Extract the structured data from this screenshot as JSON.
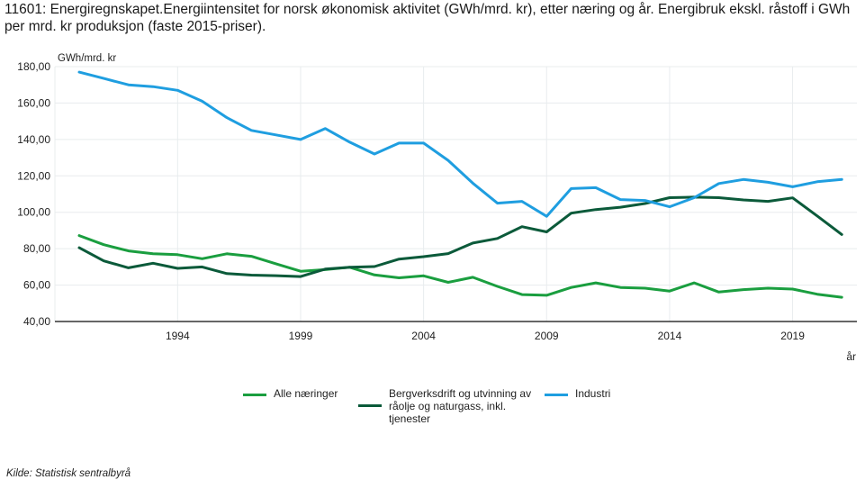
{
  "title": "11601: Energiregnskapet.Energiintensitet for norsk økonomisk aktivitet (GWh/mrd. kr), etter næring og år. Energibruk ekskl. råstoff i GWh per mrd. kr produksjon (faste 2015-priser).",
  "source": "Kilde:  Statistisk sentralbyrå",
  "chart_data": {
    "type": "line",
    "title": "11601: Energiregnskapet.Energiintensitet for norsk økonomisk aktivitet (GWh/mrd. kr), etter næring og år. Energibruk ekskl. råstoff i GWh per mrd. kr produksjon (faste 2015-priser).",
    "xlabel": "år",
    "ylabel": "GWh/mrd. kr",
    "ylim": [
      40,
      180
    ],
    "xlim": [
      1990,
      2021
    ],
    "yticks": [
      40,
      60,
      80,
      100,
      120,
      140,
      160,
      180
    ],
    "ytick_labels": [
      "40,00",
      "60,00",
      "80,00",
      "100,00",
      "120,00",
      "140,00",
      "160,00",
      "180,00"
    ],
    "xticks": [
      1994,
      1999,
      2004,
      2009,
      2014,
      2019
    ],
    "xtick_labels": [
      "1994",
      "1999",
      "2004",
      "2009",
      "2014",
      "2019"
    ],
    "grid": true,
    "legend_position": "bottom",
    "x": [
      1990,
      1991,
      1992,
      1993,
      1994,
      1995,
      1996,
      1997,
      1998,
      1999,
      2000,
      2001,
      2002,
      2003,
      2004,
      2005,
      2006,
      2007,
      2008,
      2009,
      2010,
      2011,
      2012,
      2013,
      2014,
      2015,
      2016,
      2017,
      2018,
      2019,
      2020,
      2021
    ],
    "series": [
      {
        "name": "Alle næringer",
        "color": "#1a9e3f",
        "values": [
          87.2,
          82.2,
          78.8,
          77.2,
          76.7,
          74.5,
          77.2,
          75.8,
          71.7,
          67.6,
          68.5,
          69.8,
          65.6,
          64.0,
          65.1,
          61.5,
          64.3,
          59.3,
          54.8,
          54.4,
          58.7,
          61.2,
          58.7,
          58.3,
          56.7,
          61.2,
          56.2,
          57.5,
          58.3,
          57.8,
          55.0,
          53.3
        ]
      },
      {
        "name": "Bergverksdrift og utvinning av råolje og naturgass, inkl. tjenester",
        "color": "#0b5a3a",
        "values": [
          80.5,
          73.3,
          69.5,
          72.0,
          69.2,
          70.0,
          66.3,
          65.5,
          65.2,
          64.7,
          68.8,
          69.8,
          70.2,
          74.3,
          75.6,
          77.3,
          83.1,
          85.6,
          92.1,
          89.2,
          99.5,
          101.5,
          102.8,
          104.8,
          108.0,
          108.3,
          108.0,
          106.8,
          106.0,
          107.9,
          98.0,
          87.8
        ]
      },
      {
        "name": "Industri",
        "color": "#1f9ee0",
        "values": [
          177.0,
          173.5,
          170.0,
          169.0,
          167.0,
          161.0,
          152.0,
          145.0,
          142.5,
          140.0,
          146.0,
          138.5,
          132.0,
          138.0,
          138.0,
          128.5,
          116.0,
          105.0,
          106.0,
          97.8,
          113.0,
          113.5,
          107.0,
          106.5,
          103.0,
          108.0,
          115.8,
          118.0,
          116.5,
          114.0,
          116.8,
          118.0
        ]
      }
    ]
  }
}
